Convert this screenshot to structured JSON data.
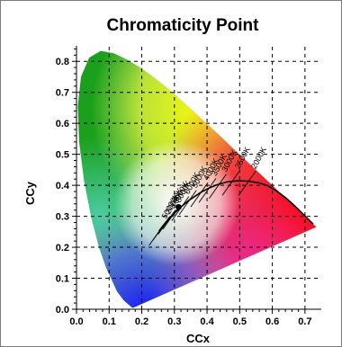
{
  "chart_data": {
    "type": "scatter",
    "title": "Chromaticity Point",
    "xlabel": "CCx",
    "ylabel": "CCy",
    "xlim": [
      0.0,
      0.75
    ],
    "ylim": [
      0.0,
      0.85
    ],
    "x_ticks": [
      "0.0",
      "0.1",
      "0.2",
      "0.3",
      "0.4",
      "0.5",
      "0.6",
      "0.7"
    ],
    "y_ticks": [
      "0.0",
      "0.1",
      "0.2",
      "0.3",
      "0.4",
      "0.5",
      "0.6",
      "0.7",
      "0.8"
    ],
    "grid": true,
    "cct_labels": [
      "2000K",
      "2500K",
      "3000K",
      "3500K",
      "4000K",
      "5000K",
      "6000K",
      "8000K",
      "10000K",
      "20000K",
      "50000K"
    ],
    "point": {
      "x": 0.313,
      "y": 0.33
    },
    "colors": {
      "grid": "#000000",
      "point": "#000000",
      "locus": "#000000"
    }
  }
}
